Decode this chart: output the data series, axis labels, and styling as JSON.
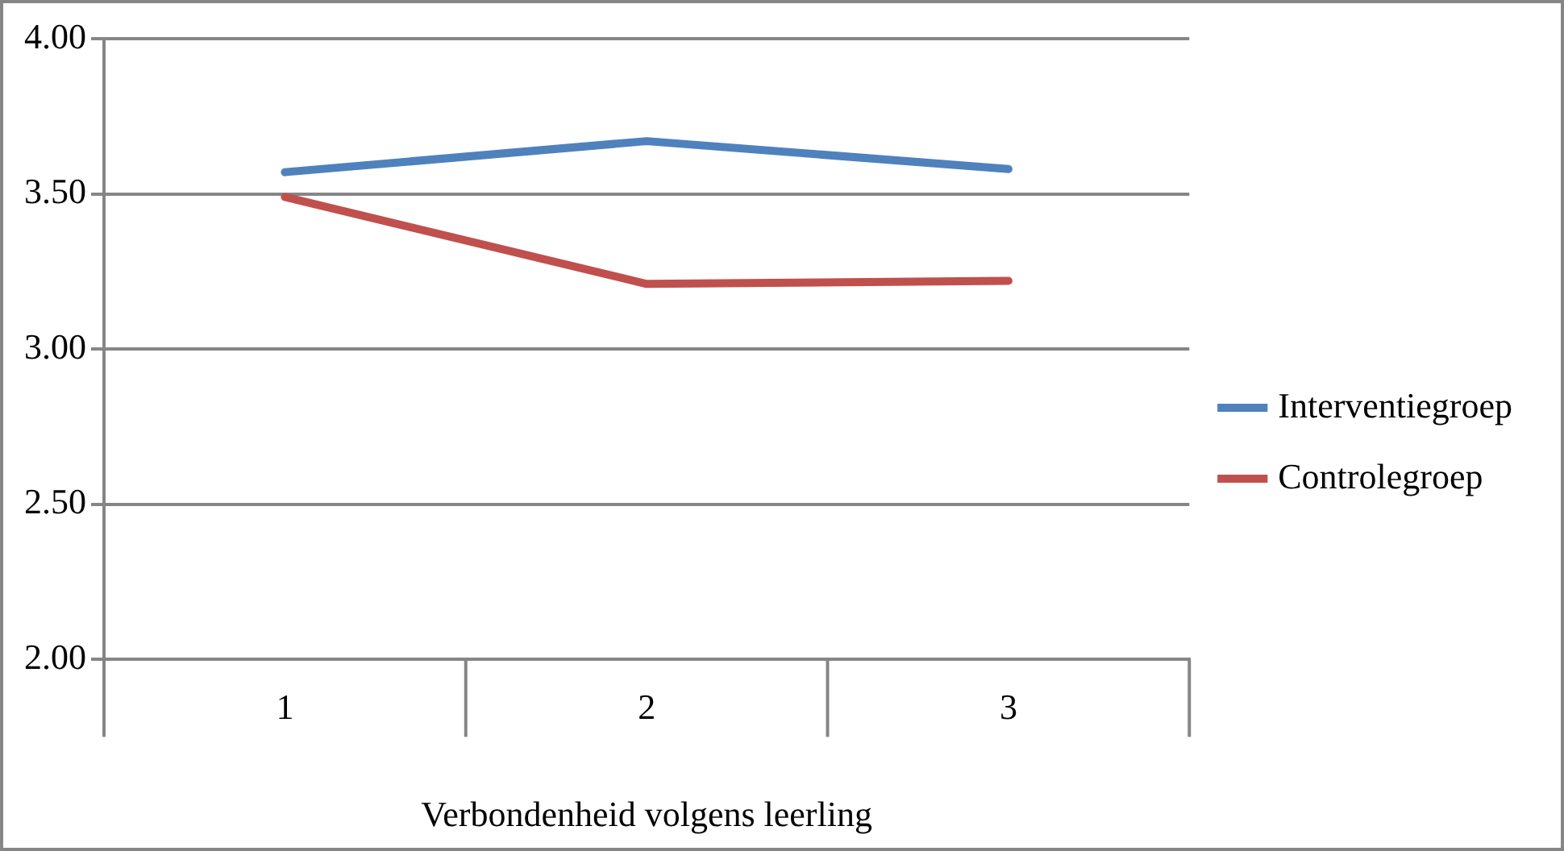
{
  "chart_data": {
    "type": "line",
    "xlabel": "Verbondenheid volgens leerling",
    "categories": [
      "1",
      "2",
      "3"
    ],
    "series": [
      {
        "name": "Interventiegroep",
        "color": "#4f81bd",
        "values": [
          3.57,
          3.67,
          3.58
        ]
      },
      {
        "name": "Controlegroep",
        "color": "#c0504d",
        "values": [
          3.49,
          3.21,
          3.22
        ]
      }
    ],
    "ylim": [
      2,
      4
    ],
    "yticks": [
      {
        "value": 2,
        "label": "2.00"
      },
      {
        "value": 2.5,
        "label": "2.50"
      },
      {
        "value": 3,
        "label": "3.00"
      },
      {
        "value": 3.5,
        "label": "3.50"
      },
      {
        "value": 4,
        "label": "4.00"
      }
    ],
    "grid": "y",
    "legend": "right",
    "marker": "none",
    "line_style": "solid"
  }
}
